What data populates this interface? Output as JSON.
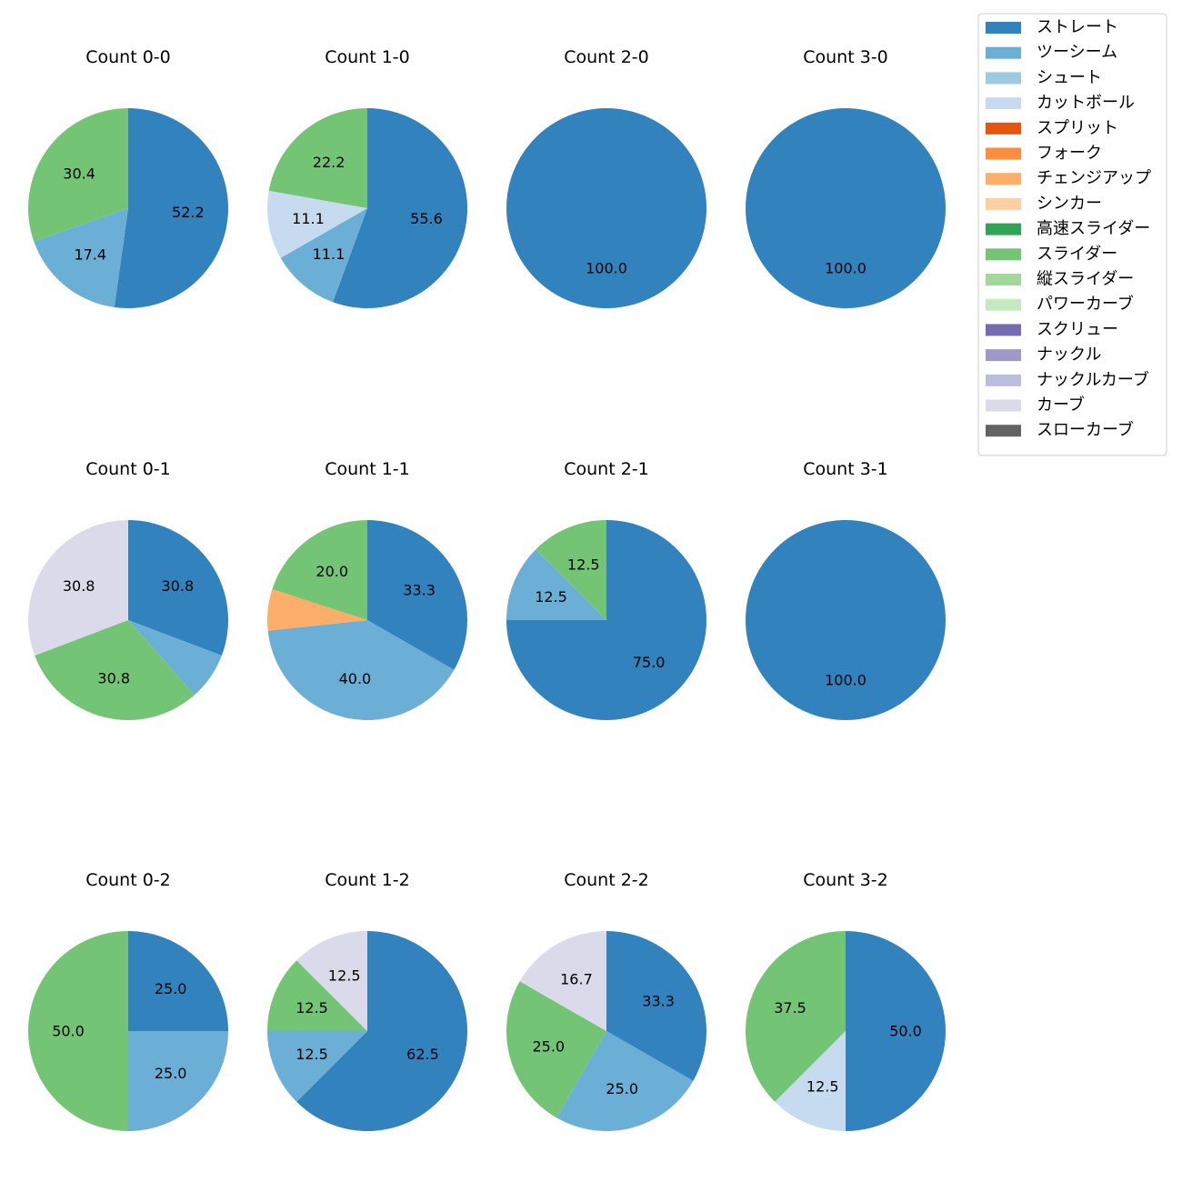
{
  "chart_data": {
    "type": "pie",
    "legend": {
      "placement": "top-right",
      "entries": [
        {
          "name": "ストレート",
          "color": "#3182bd"
        },
        {
          "name": "ツーシーム",
          "color": "#6baed6"
        },
        {
          "name": "シュート",
          "color": "#9ecae1"
        },
        {
          "name": "カットボール",
          "color": "#c6dbef"
        },
        {
          "name": "スプリット",
          "color": "#e6550d"
        },
        {
          "name": "フォーク",
          "color": "#fd8d3c"
        },
        {
          "name": "チェンジアップ",
          "color": "#fdae6b"
        },
        {
          "name": "シンカー",
          "color": "#fdd0a2"
        },
        {
          "name": "高速スライダー",
          "color": "#31a354"
        },
        {
          "name": "スライダー",
          "color": "#74c476"
        },
        {
          "name": "縦スライダー",
          "color": "#a1d99b"
        },
        {
          "name": "パワーカーブ",
          "color": "#c7e9c0"
        },
        {
          "name": "スクリュー",
          "color": "#756bb1"
        },
        {
          "name": "ナックル",
          "color": "#9e9ac8"
        },
        {
          "name": "ナックルカーブ",
          "color": "#bcbddc"
        },
        {
          "name": "カーブ",
          "color": "#dadaeb"
        },
        {
          "name": "スローカーブ",
          "color": "#636363"
        }
      ]
    },
    "pies": [
      {
        "title": "Count 0-0",
        "slices": [
          {
            "pitch": "ストレート",
            "value": 52.2,
            "label": "52.2"
          },
          {
            "pitch": "ツーシーム",
            "value": 17.4,
            "label": "17.4"
          },
          {
            "pitch": "スライダー",
            "value": 30.4,
            "label": "30.4"
          }
        ]
      },
      {
        "title": "Count 1-0",
        "slices": [
          {
            "pitch": "ストレート",
            "value": 55.6,
            "label": "55.6"
          },
          {
            "pitch": "ツーシーム",
            "value": 11.1,
            "label": "11.1"
          },
          {
            "pitch": "カットボール",
            "value": 11.1,
            "label": "11.1"
          },
          {
            "pitch": "スライダー",
            "value": 22.2,
            "label": "22.2"
          }
        ]
      },
      {
        "title": "Count 2-0",
        "slices": [
          {
            "pitch": "ストレート",
            "value": 100.0,
            "label": "100.0"
          }
        ]
      },
      {
        "title": "Count 3-0",
        "slices": [
          {
            "pitch": "ストレート",
            "value": 100.0,
            "label": "100.0"
          }
        ]
      },
      {
        "title": "Count 0-1",
        "slices": [
          {
            "pitch": "ストレート",
            "value": 30.8,
            "label": "30.8"
          },
          {
            "pitch": "ツーシーム",
            "value": 7.7,
            "label": ""
          },
          {
            "pitch": "スライダー",
            "value": 30.8,
            "label": "30.8"
          },
          {
            "pitch": "カーブ",
            "value": 30.8,
            "label": "30.8"
          }
        ]
      },
      {
        "title": "Count 1-1",
        "slices": [
          {
            "pitch": "ストレート",
            "value": 33.3,
            "label": "33.3"
          },
          {
            "pitch": "ツーシーム",
            "value": 40.0,
            "label": "40.0"
          },
          {
            "pitch": "チェンジアップ",
            "value": 6.7,
            "label": ""
          },
          {
            "pitch": "スライダー",
            "value": 20.0,
            "label": "20.0"
          }
        ]
      },
      {
        "title": "Count 2-1",
        "slices": [
          {
            "pitch": "ストレート",
            "value": 75.0,
            "label": "75.0"
          },
          {
            "pitch": "ツーシーム",
            "value": 12.5,
            "label": "12.5"
          },
          {
            "pitch": "スライダー",
            "value": 12.5,
            "label": "12.5"
          }
        ]
      },
      {
        "title": "Count 3-1",
        "slices": [
          {
            "pitch": "ストレート",
            "value": 100.0,
            "label": "100.0"
          }
        ]
      },
      {
        "title": "Count 0-2",
        "slices": [
          {
            "pitch": "ストレート",
            "value": 25.0,
            "label": "25.0"
          },
          {
            "pitch": "ツーシーム",
            "value": 25.0,
            "label": "25.0"
          },
          {
            "pitch": "スライダー",
            "value": 50.0,
            "label": "50.0"
          }
        ]
      },
      {
        "title": "Count 1-2",
        "slices": [
          {
            "pitch": "ストレート",
            "value": 62.5,
            "label": "62.5"
          },
          {
            "pitch": "ツーシーム",
            "value": 12.5,
            "label": "12.5"
          },
          {
            "pitch": "スライダー",
            "value": 12.5,
            "label": "12.5"
          },
          {
            "pitch": "カーブ",
            "value": 12.5,
            "label": "12.5"
          }
        ]
      },
      {
        "title": "Count 2-2",
        "slices": [
          {
            "pitch": "ストレート",
            "value": 33.3,
            "label": "33.3"
          },
          {
            "pitch": "ツーシーム",
            "value": 25.0,
            "label": "25.0"
          },
          {
            "pitch": "スライダー",
            "value": 25.0,
            "label": "25.0"
          },
          {
            "pitch": "カーブ",
            "value": 16.7,
            "label": "16.7"
          }
        ]
      },
      {
        "title": "Count 3-2",
        "slices": [
          {
            "pitch": "ストレート",
            "value": 50.0,
            "label": "50.0"
          },
          {
            "pitch": "カットボール",
            "value": 12.5,
            "label": "12.5"
          },
          {
            "pitch": "スライダー",
            "value": 37.5,
            "label": "37.5"
          }
        ]
      }
    ]
  }
}
